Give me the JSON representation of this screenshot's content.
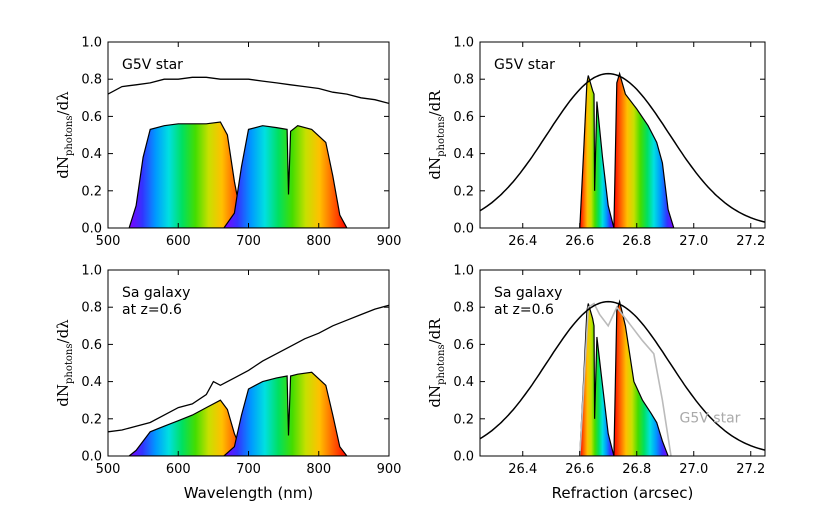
{
  "figure": {
    "x_label_left": "Wavelength (nm)",
    "x_label_right": "Refraction (arcsec)",
    "y_label_left": {
      "main": "dN",
      "sub": "photons",
      "tail": "/dλ"
    },
    "y_label_right": {
      "main": "dN",
      "sub": "photons",
      "tail": "/dR"
    },
    "colors": {
      "line": "#000000",
      "gray": "#bbbbbb",
      "frame": "#000000"
    }
  },
  "chart_data": [
    {
      "panel": "top-left",
      "type": "area",
      "title": "",
      "annotation": [
        "G5V star"
      ],
      "xlabel": "",
      "ylabel": "dN_photons/dλ",
      "xlim": [
        500,
        900
      ],
      "ylim": [
        0.0,
        1.0
      ],
      "xticks": [
        500,
        600,
        700,
        800,
        900
      ],
      "yticks": [
        0.0,
        0.2,
        0.4,
        0.6,
        0.8,
        1.0
      ],
      "series": [
        {
          "name": "G5V spectrum",
          "style": "line",
          "x": [
            500,
            520,
            540,
            560,
            580,
            600,
            620,
            640,
            660,
            680,
            700,
            720,
            740,
            760,
            780,
            800,
            820,
            840,
            860,
            880,
            900
          ],
          "y": [
            0.72,
            0.76,
            0.77,
            0.78,
            0.8,
            0.8,
            0.81,
            0.81,
            0.8,
            0.8,
            0.8,
            0.79,
            0.78,
            0.77,
            0.76,
            0.75,
            0.73,
            0.72,
            0.7,
            0.69,
            0.67
          ]
        },
        {
          "name": "r filter",
          "style": "rainbow",
          "x": [
            530,
            540,
            550,
            560,
            580,
            600,
            620,
            640,
            660,
            670,
            680,
            690,
            700
          ],
          "y": [
            0.0,
            0.12,
            0.38,
            0.53,
            0.55,
            0.56,
            0.56,
            0.56,
            0.57,
            0.5,
            0.25,
            0.05,
            0.0
          ]
        },
        {
          "name": "i filter",
          "style": "rainbow",
          "x": [
            665,
            680,
            690,
            700,
            720,
            740,
            755,
            757,
            760,
            770,
            790,
            810,
            820,
            830,
            840
          ],
          "y": [
            0.0,
            0.08,
            0.33,
            0.53,
            0.55,
            0.54,
            0.53,
            0.18,
            0.52,
            0.55,
            0.53,
            0.46,
            0.28,
            0.07,
            0.0
          ]
        }
      ]
    },
    {
      "panel": "top-right",
      "type": "area",
      "title": "",
      "annotation": [
        "G5V star"
      ],
      "xlabel": "",
      "ylabel": "dN_photons/dR",
      "xlim": [
        26.25,
        27.25
      ],
      "ylim": [
        0.0,
        1.0
      ],
      "xticks": [
        26.4,
        26.6,
        26.8,
        27.0,
        27.2
      ],
      "yticks": [
        0.0,
        0.2,
        0.4,
        0.6,
        0.8,
        1.0
      ],
      "series": [
        {
          "name": "PSF",
          "style": "gaussian",
          "mu": 26.7,
          "sigma": 0.215,
          "amplitude": 0.83
        },
        {
          "name": "r-band refraction",
          "style": "rainbow-reversed",
          "x": [
            26.72,
            26.73,
            26.74,
            26.76,
            26.8,
            26.84,
            26.87,
            26.89,
            26.91,
            26.93
          ],
          "y": [
            0.0,
            0.78,
            0.83,
            0.72,
            0.64,
            0.55,
            0.46,
            0.35,
            0.1,
            0.0
          ]
        },
        {
          "name": "i-band refraction",
          "style": "rainbow-reversed",
          "x": [
            26.6,
            26.615,
            26.625,
            26.63,
            26.645,
            26.65,
            26.652,
            26.66,
            26.68,
            26.7,
            26.72
          ],
          "y": [
            0.0,
            0.45,
            0.78,
            0.82,
            0.74,
            0.72,
            0.2,
            0.68,
            0.38,
            0.12,
            0.0
          ]
        }
      ]
    },
    {
      "panel": "bottom-left",
      "type": "area",
      "title": "",
      "annotation": [
        "Sa galaxy",
        "at z=0.6"
      ],
      "xlabel": "Wavelength (nm)",
      "ylabel": "dN_photons/dλ",
      "xlim": [
        500,
        900
      ],
      "ylim": [
        0.0,
        1.0
      ],
      "xticks": [
        500,
        600,
        700,
        800,
        900
      ],
      "yticks": [
        0.0,
        0.2,
        0.4,
        0.6,
        0.8,
        1.0
      ],
      "series": [
        {
          "name": "Sa galaxy spectrum",
          "style": "line",
          "x": [
            500,
            520,
            540,
            560,
            580,
            600,
            620,
            640,
            650,
            660,
            680,
            700,
            720,
            740,
            760,
            780,
            800,
            820,
            840,
            860,
            880,
            900
          ],
          "y": [
            0.13,
            0.14,
            0.16,
            0.18,
            0.22,
            0.26,
            0.28,
            0.33,
            0.4,
            0.38,
            0.42,
            0.46,
            0.51,
            0.55,
            0.59,
            0.63,
            0.66,
            0.7,
            0.73,
            0.76,
            0.79,
            0.81
          ]
        },
        {
          "name": "r filter",
          "style": "rainbow",
          "x": [
            530,
            540,
            560,
            580,
            600,
            620,
            640,
            660,
            670,
            680,
            690,
            700
          ],
          "y": [
            0.0,
            0.03,
            0.13,
            0.16,
            0.19,
            0.22,
            0.26,
            0.3,
            0.25,
            0.12,
            0.03,
            0.0
          ]
        },
        {
          "name": "i filter",
          "style": "rainbow",
          "x": [
            665,
            680,
            690,
            700,
            720,
            740,
            755,
            757,
            760,
            770,
            790,
            810,
            820,
            830,
            840
          ],
          "y": [
            0.0,
            0.05,
            0.22,
            0.36,
            0.4,
            0.42,
            0.43,
            0.11,
            0.43,
            0.44,
            0.45,
            0.38,
            0.22,
            0.05,
            0.0
          ]
        }
      ]
    },
    {
      "panel": "bottom-right",
      "type": "area",
      "title": "",
      "annotation": [
        "Sa galaxy",
        "at z=0.6",
        "G5V star"
      ],
      "xlabel": "Refraction (arcsec)",
      "ylabel": "dN_photons/dR",
      "xlim": [
        26.25,
        27.25
      ],
      "ylim": [
        0.0,
        1.0
      ],
      "xticks": [
        26.4,
        26.6,
        26.8,
        27.0,
        27.2
      ],
      "yticks": [
        0.0,
        0.2,
        0.4,
        0.6,
        0.8,
        1.0
      ],
      "series": [
        {
          "name": "PSF",
          "style": "gaussian",
          "mu": 26.7,
          "sigma": 0.215,
          "amplitude": 0.83
        },
        {
          "name": "G5V star reference",
          "style": "gray-line",
          "x": [
            26.6,
            26.63,
            26.65,
            26.67,
            26.7,
            26.73,
            26.75,
            26.78,
            26.82,
            26.86,
            26.89,
            26.92
          ],
          "y": [
            0.0,
            0.8,
            0.82,
            0.76,
            0.7,
            0.8,
            0.76,
            0.7,
            0.62,
            0.55,
            0.3,
            0.0
          ]
        },
        {
          "name": "r-band refraction",
          "style": "rainbow-reversed",
          "x": [
            26.72,
            26.73,
            26.74,
            26.76,
            26.79,
            26.82,
            26.85,
            26.87,
            26.89,
            26.91
          ],
          "y": [
            0.0,
            0.78,
            0.83,
            0.7,
            0.4,
            0.3,
            0.23,
            0.18,
            0.08,
            0.0
          ]
        },
        {
          "name": "i-band refraction",
          "style": "rainbow-reversed",
          "x": [
            26.6,
            26.615,
            26.625,
            26.63,
            26.645,
            26.65,
            26.652,
            26.66,
            26.68,
            26.7,
            26.72
          ],
          "y": [
            0.0,
            0.45,
            0.78,
            0.82,
            0.74,
            0.7,
            0.2,
            0.64,
            0.38,
            0.12,
            0.0
          ]
        }
      ]
    }
  ]
}
